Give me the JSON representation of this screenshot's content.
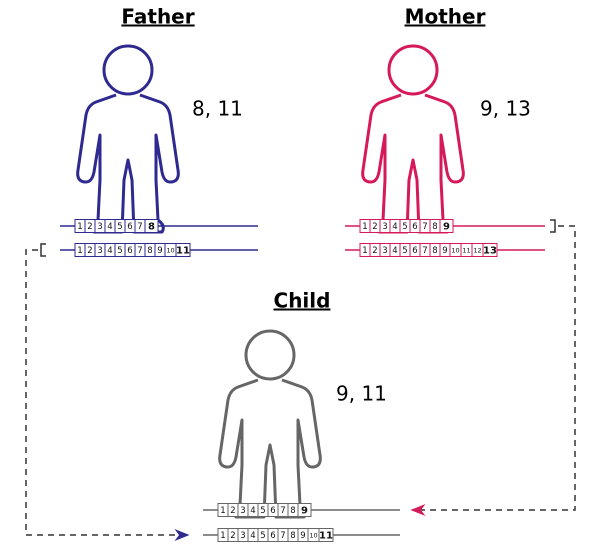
{
  "father": {
    "title": "Father",
    "genotype": "8, 11",
    "alleles": [
      {
        "repeats": [
          1,
          2,
          3,
          4,
          5,
          6,
          7,
          8
        ]
      },
      {
        "repeats": [
          1,
          2,
          3,
          4,
          5,
          6,
          7,
          8,
          9,
          10,
          11
        ]
      }
    ]
  },
  "mother": {
    "title": "Mother",
    "genotype": "9, 13",
    "alleles": [
      {
        "repeats": [
          1,
          2,
          3,
          4,
          5,
          6,
          7,
          8,
          9
        ]
      },
      {
        "repeats": [
          1,
          2,
          3,
          4,
          5,
          6,
          7,
          8,
          9,
          10,
          11,
          12,
          13
        ]
      }
    ]
  },
  "child": {
    "title": "Child",
    "genotype": "9, 11",
    "alleles": [
      {
        "repeats": [
          1,
          2,
          3,
          4,
          5,
          6,
          7,
          8,
          9
        ]
      },
      {
        "repeats": [
          1,
          2,
          3,
          4,
          5,
          6,
          7,
          8,
          9,
          10,
          11
        ]
      }
    ]
  }
}
